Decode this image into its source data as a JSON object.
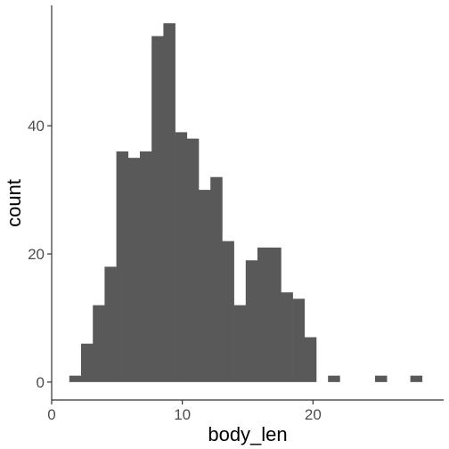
{
  "chart_data": {
    "type": "bar",
    "xlabel": "body_len",
    "ylabel": "count",
    "xlim": [
      0,
      30
    ],
    "ylim": [
      -2.8,
      58.8
    ],
    "x_ticks": [
      0,
      10,
      20
    ],
    "y_ticks": [
      0,
      20,
      40
    ],
    "bin_width": 0.9,
    "grid": false,
    "bar_color": "#595959",
    "bins": [
      {
        "x0": 1.35,
        "count": 1
      },
      {
        "x0": 2.25,
        "count": 6
      },
      {
        "x0": 3.15,
        "count": 12
      },
      {
        "x0": 4.05,
        "count": 18
      },
      {
        "x0": 4.95,
        "count": 36
      },
      {
        "x0": 5.85,
        "count": 35
      },
      {
        "x0": 6.75,
        "count": 36
      },
      {
        "x0": 7.65,
        "count": 54
      },
      {
        "x0": 8.55,
        "count": 56
      },
      {
        "x0": 9.45,
        "count": 39
      },
      {
        "x0": 10.35,
        "count": 38
      },
      {
        "x0": 11.25,
        "count": 30
      },
      {
        "x0": 12.15,
        "count": 32
      },
      {
        "x0": 13.05,
        "count": 22
      },
      {
        "x0": 13.95,
        "count": 12
      },
      {
        "x0": 14.85,
        "count": 19
      },
      {
        "x0": 15.75,
        "count": 21
      },
      {
        "x0": 16.65,
        "count": 21
      },
      {
        "x0": 17.55,
        "count": 14
      },
      {
        "x0": 18.45,
        "count": 13
      },
      {
        "x0": 19.35,
        "count": 7
      },
      {
        "x0": 21.15,
        "count": 1
      },
      {
        "x0": 24.75,
        "count": 1
      },
      {
        "x0": 27.45,
        "count": 1
      }
    ]
  }
}
